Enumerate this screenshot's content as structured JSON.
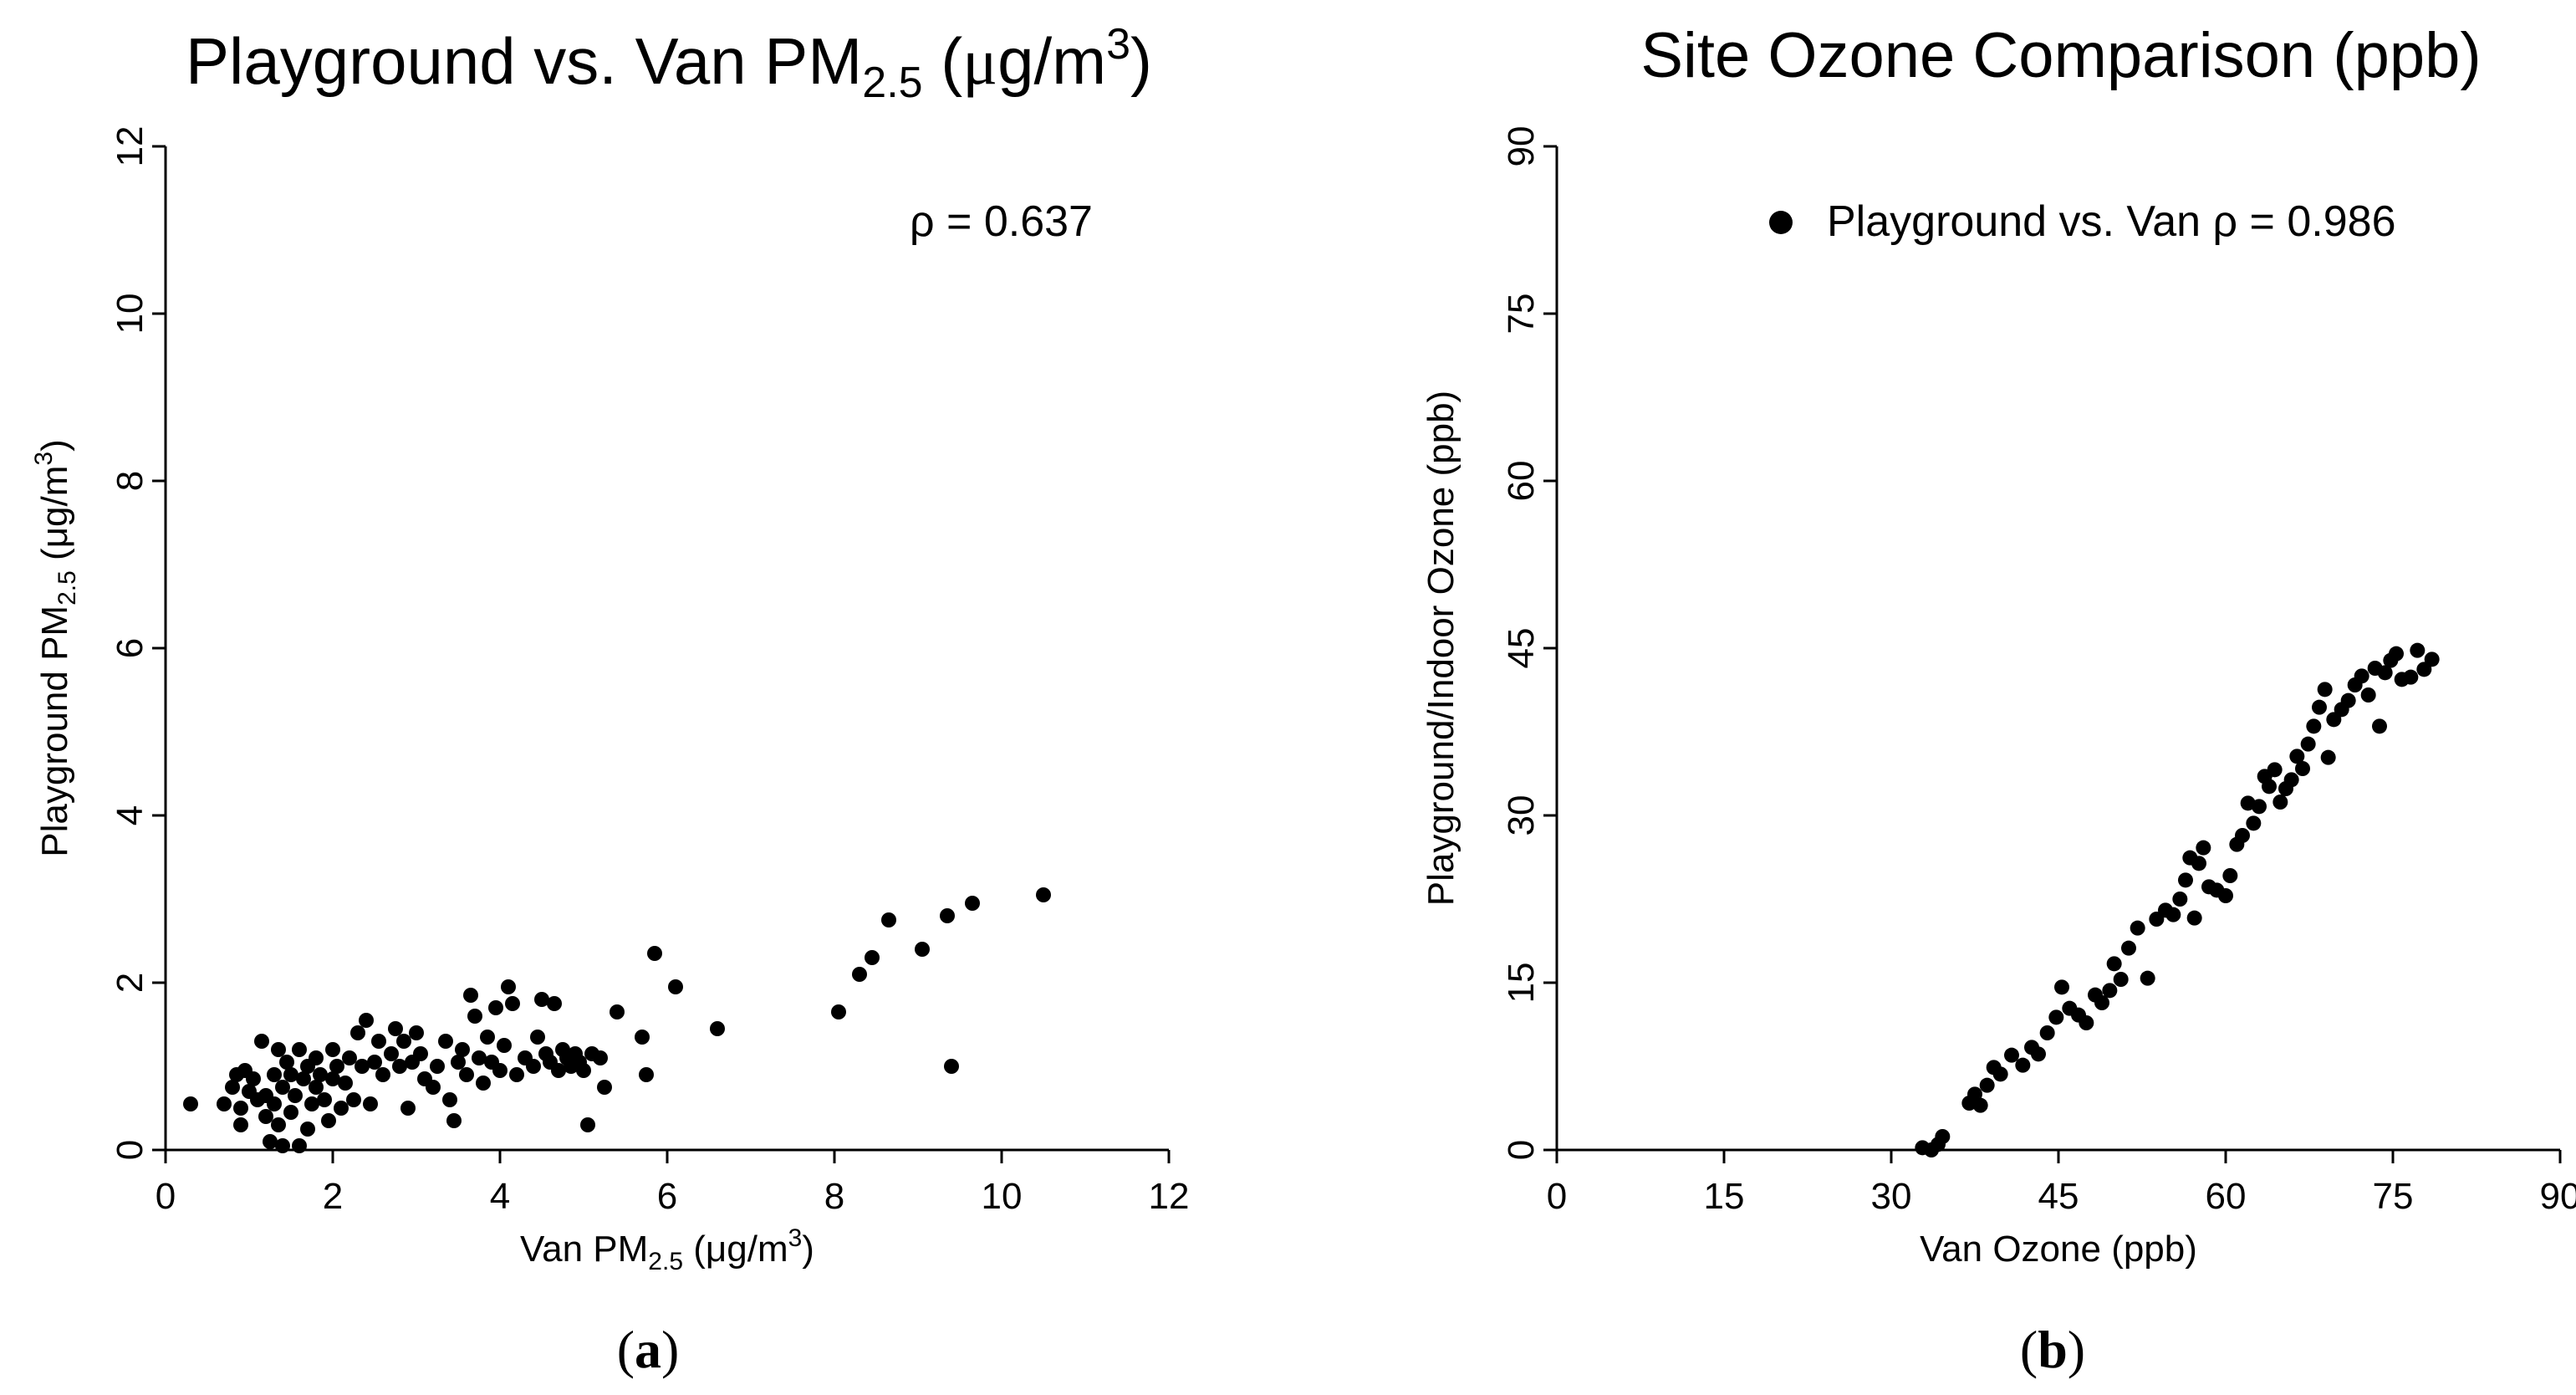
{
  "chart_data": [
    {
      "id": "a",
      "type": "scatter",
      "title": {
        "prefix": "Playground vs. Van PM",
        "sub": "2.5",
        "unit_open": " (",
        "mu": "μ",
        "unit_g": "g/m",
        "sup": "3",
        "unit_close": ")"
      },
      "xlabel": {
        "prefix": "Van PM",
        "sub": "2.5",
        "unit": " (μg/m",
        "sup": "3",
        "close": ")"
      },
      "ylabel": {
        "prefix": "Playground PM",
        "sub": "2.5",
        "unit": " (μg/m",
        "sup": "3",
        "close": ")"
      },
      "xlim": [
        0,
        12
      ],
      "ylim": [
        0,
        12
      ],
      "xticks": [
        "0",
        "2",
        "4",
        "6",
        "8",
        "10",
        "12"
      ],
      "yticks": [
        "0",
        "2",
        "4",
        "6",
        "8",
        "10",
        "12"
      ],
      "annotation": "ρ = 0.637",
      "panel_label": {
        "open": "(",
        "letter": "a",
        "close": ")"
      },
      "points": [
        [
          0.3,
          0.55
        ],
        [
          0.7,
          0.55
        ],
        [
          0.8,
          0.75
        ],
        [
          0.85,
          0.9
        ],
        [
          0.9,
          0.3
        ],
        [
          0.9,
          0.5
        ],
        [
          0.95,
          0.95
        ],
        [
          1.0,
          0.7
        ],
        [
          1.05,
          0.85
        ],
        [
          1.1,
          0.6
        ],
        [
          1.15,
          1.3
        ],
        [
          1.2,
          0.4
        ],
        [
          1.2,
          0.65
        ],
        [
          1.25,
          0.1
        ],
        [
          1.3,
          0.55
        ],
        [
          1.3,
          0.9
        ],
        [
          1.35,
          1.2
        ],
        [
          1.35,
          0.3
        ],
        [
          1.4,
          0.05
        ],
        [
          1.4,
          0.75
        ],
        [
          1.45,
          1.05
        ],
        [
          1.5,
          0.45
        ],
        [
          1.5,
          0.9
        ],
        [
          1.55,
          0.65
        ],
        [
          1.6,
          1.2
        ],
        [
          1.6,
          0.05
        ],
        [
          1.65,
          0.85
        ],
        [
          1.7,
          0.25
        ],
        [
          1.7,
          1.0
        ],
        [
          1.75,
          0.55
        ],
        [
          1.8,
          0.75
        ],
        [
          1.8,
          1.1
        ],
        [
          1.85,
          0.9
        ],
        [
          1.9,
          0.6
        ],
        [
          1.95,
          0.35
        ],
        [
          2.0,
          0.85
        ],
        [
          2.0,
          1.2
        ],
        [
          2.05,
          1.0
        ],
        [
          2.1,
          0.5
        ],
        [
          2.15,
          0.8
        ],
        [
          2.2,
          1.1
        ],
        [
          2.25,
          0.6
        ],
        [
          2.3,
          1.4
        ],
        [
          2.35,
          1.0
        ],
        [
          2.4,
          1.55
        ],
        [
          2.45,
          0.55
        ],
        [
          2.5,
          1.05
        ],
        [
          2.55,
          1.3
        ],
        [
          2.6,
          0.9
        ],
        [
          2.7,
          1.15
        ],
        [
          2.75,
          1.45
        ],
        [
          2.8,
          1.0
        ],
        [
          2.85,
          1.3
        ],
        [
          2.9,
          0.5
        ],
        [
          2.95,
          1.05
        ],
        [
          3.0,
          1.4
        ],
        [
          3.05,
          1.15
        ],
        [
          3.1,
          0.85
        ],
        [
          3.2,
          0.75
        ],
        [
          3.25,
          1.0
        ],
        [
          3.35,
          1.3
        ],
        [
          3.4,
          0.6
        ],
        [
          3.45,
          0.35
        ],
        [
          3.5,
          1.05
        ],
        [
          3.55,
          1.2
        ],
        [
          3.6,
          0.9
        ],
        [
          3.65,
          1.85
        ],
        [
          3.7,
          1.6
        ],
        [
          3.75,
          1.1
        ],
        [
          3.8,
          0.8
        ],
        [
          3.85,
          1.35
        ],
        [
          3.9,
          1.05
        ],
        [
          3.95,
          1.7
        ],
        [
          4.0,
          0.95
        ],
        [
          4.05,
          1.25
        ],
        [
          4.1,
          1.95
        ],
        [
          4.15,
          1.75
        ],
        [
          4.2,
          0.9
        ],
        [
          4.3,
          1.1
        ],
        [
          4.4,
          1.0
        ],
        [
          4.45,
          1.35
        ],
        [
          4.5,
          1.8
        ],
        [
          4.55,
          1.15
        ],
        [
          4.6,
          1.05
        ],
        [
          4.65,
          1.75
        ],
        [
          4.7,
          0.95
        ],
        [
          4.75,
          1.2
        ],
        [
          4.8,
          1.1
        ],
        [
          4.85,
          1.0
        ],
        [
          4.9,
          1.15
        ],
        [
          4.95,
          1.05
        ],
        [
          5.0,
          0.95
        ],
        [
          5.05,
          0.3
        ],
        [
          5.1,
          1.15
        ],
        [
          5.2,
          1.1
        ],
        [
          5.25,
          0.75
        ],
        [
          5.4,
          1.65
        ],
        [
          5.7,
          1.35
        ],
        [
          5.75,
          0.9
        ],
        [
          5.85,
          2.35
        ],
        [
          6.1,
          1.95
        ],
        [
          6.6,
          1.45
        ],
        [
          8.05,
          1.65
        ],
        [
          8.3,
          2.1
        ],
        [
          8.45,
          2.3
        ],
        [
          8.65,
          2.75
        ],
        [
          9.05,
          2.4
        ],
        [
          9.35,
          2.8
        ],
        [
          9.4,
          1.0
        ],
        [
          9.65,
          2.95
        ],
        [
          10.5,
          3.05
        ]
      ]
    },
    {
      "id": "b",
      "type": "scatter",
      "title": "Site Ozone Comparison (ppb)",
      "xlabel": "Van Ozone (ppb)",
      "ylabel": "Playground/Indoor Ozone (ppb)",
      "xlim": [
        0,
        90
      ],
      "ylim": [
        0,
        90
      ],
      "xticks": [
        "0",
        "15",
        "30",
        "45",
        "60",
        "75",
        "90"
      ],
      "yticks": [
        "0",
        "15",
        "30",
        "45",
        "60",
        "75",
        "90"
      ],
      "legend": {
        "label": "Playground vs. Van ρ = 0.986",
        "position": "top-right"
      },
      "panel_label": {
        "open": "(",
        "letter": "b",
        "close": ")"
      },
      "points": [
        [
          32.8,
          0.2
        ],
        [
          33.6,
          0.0
        ],
        [
          34.2,
          0.5
        ],
        [
          34.6,
          1.2
        ],
        [
          37.0,
          4.2
        ],
        [
          37.5,
          5.0
        ],
        [
          38.0,
          4.0
        ],
        [
          38.6,
          5.8
        ],
        [
          39.2,
          7.4
        ],
        [
          39.8,
          6.8
        ],
        [
          40.8,
          8.5
        ],
        [
          41.8,
          7.6
        ],
        [
          42.6,
          9.2
        ],
        [
          43.2,
          8.6
        ],
        [
          44.0,
          10.5
        ],
        [
          44.8,
          11.9
        ],
        [
          45.3,
          14.6
        ],
        [
          46.0,
          12.7
        ],
        [
          46.8,
          12.1
        ],
        [
          47.5,
          11.4
        ],
        [
          48.3,
          13.9
        ],
        [
          48.9,
          13.2
        ],
        [
          49.6,
          14.3
        ],
        [
          50.0,
          16.7
        ],
        [
          50.6,
          15.3
        ],
        [
          51.3,
          18.1
        ],
        [
          52.1,
          19.9
        ],
        [
          53.0,
          15.4
        ],
        [
          53.8,
          20.7
        ],
        [
          54.6,
          21.5
        ],
        [
          55.3,
          21.1
        ],
        [
          55.9,
          22.5
        ],
        [
          56.4,
          24.2
        ],
        [
          56.8,
          26.2
        ],
        [
          57.2,
          20.8
        ],
        [
          57.6,
          25.7
        ],
        [
          58.0,
          27.1
        ],
        [
          58.5,
          23.6
        ],
        [
          59.2,
          23.3
        ],
        [
          60.0,
          22.8
        ],
        [
          60.4,
          24.6
        ],
        [
          61.0,
          27.4
        ],
        [
          61.5,
          28.2
        ],
        [
          62.0,
          31.1
        ],
        [
          62.5,
          29.3
        ],
        [
          63.0,
          30.8
        ],
        [
          63.5,
          33.5
        ],
        [
          63.9,
          32.6
        ],
        [
          64.4,
          34.1
        ],
        [
          64.9,
          31.2
        ],
        [
          65.4,
          32.4
        ],
        [
          65.9,
          33.2
        ],
        [
          66.4,
          35.3
        ],
        [
          66.9,
          34.2
        ],
        [
          67.4,
          36.4
        ],
        [
          67.9,
          38.0
        ],
        [
          68.4,
          39.7
        ],
        [
          68.9,
          41.3
        ],
        [
          69.2,
          35.2
        ],
        [
          69.7,
          38.6
        ],
        [
          70.4,
          39.5
        ],
        [
          71.0,
          40.3
        ],
        [
          71.6,
          41.7
        ],
        [
          72.2,
          42.5
        ],
        [
          72.8,
          40.8
        ],
        [
          73.4,
          43.2
        ],
        [
          73.8,
          38.0
        ],
        [
          74.3,
          42.8
        ],
        [
          74.8,
          43.9
        ],
        [
          75.3,
          44.5
        ],
        [
          75.8,
          42.2
        ],
        [
          76.6,
          42.4
        ],
        [
          77.2,
          44.8
        ],
        [
          77.8,
          43.1
        ],
        [
          78.5,
          44.0
        ]
      ]
    }
  ]
}
